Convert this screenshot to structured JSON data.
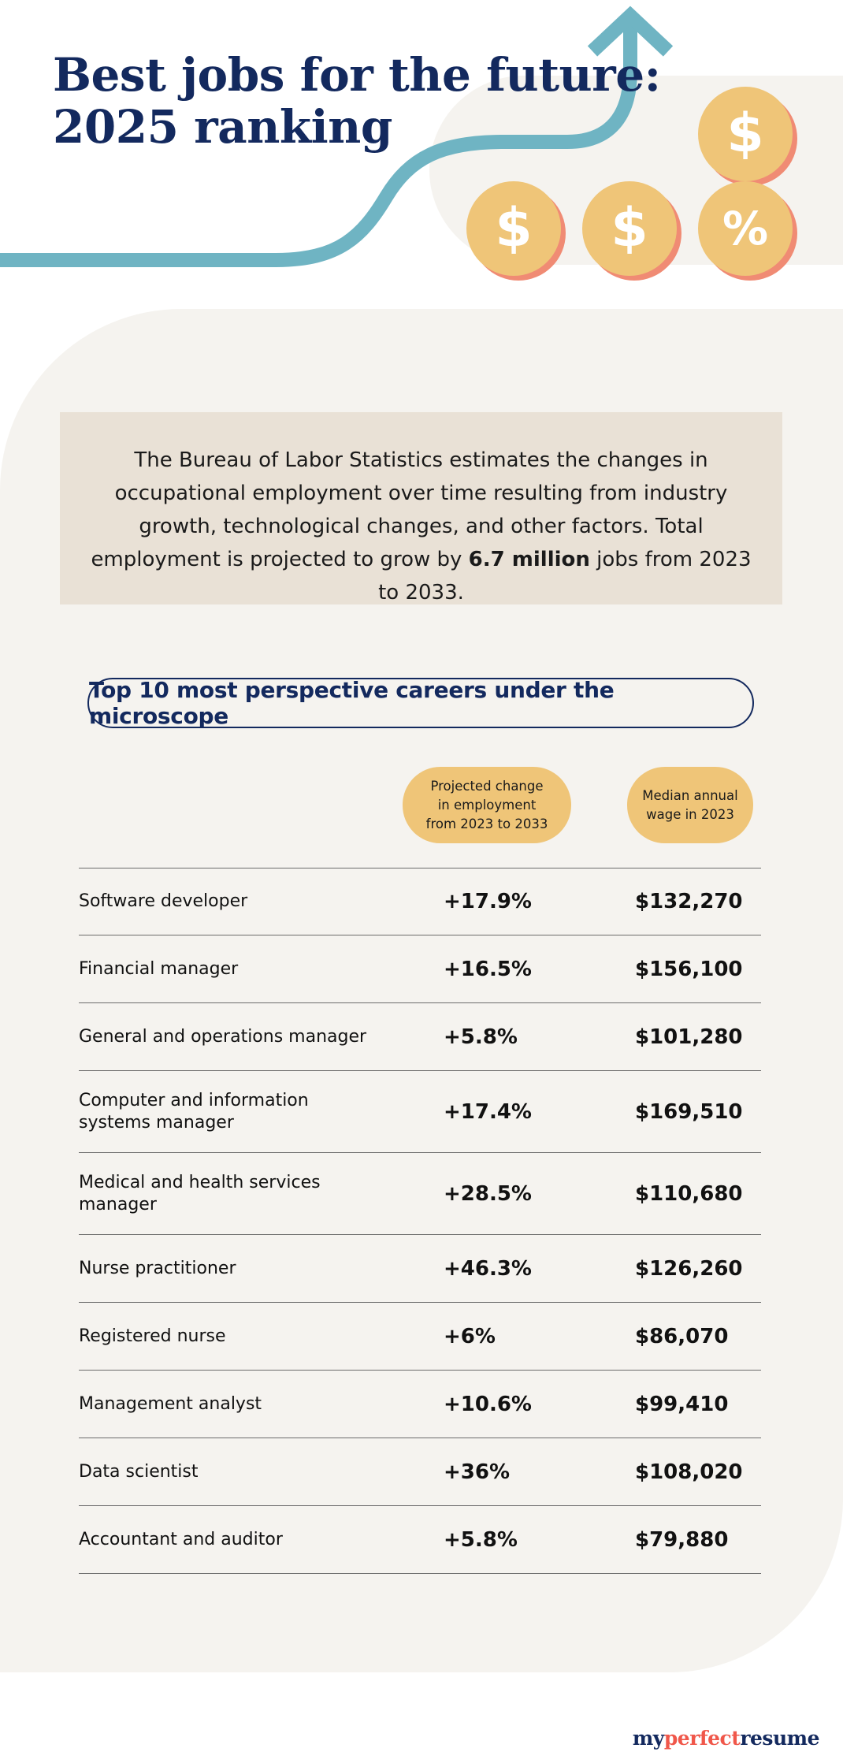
{
  "header": {
    "title_line1": "Best jobs for the future:",
    "title_line2": "2025 ranking"
  },
  "decorations": {
    "arrow_color": "#6fb4c3",
    "coin_color": "#efc578",
    "coin_shadow_color": "#f08b74",
    "coins": [
      {
        "icon": "dollar-icon",
        "glyph": "$"
      },
      {
        "icon": "dollar-icon",
        "glyph": "$"
      },
      {
        "icon": "dollar-icon",
        "glyph": "$"
      },
      {
        "icon": "percent-icon",
        "glyph": "%"
      }
    ]
  },
  "intro": {
    "text_before": "The Bureau of Labor Statistics estimates the changes in occupational employment over time resulting from industry growth, technological changes, and other factors. Total employment is projected to grow by ",
    "highlight": "6.7 million",
    "text_after": " jobs from 2023 to 2033."
  },
  "table_title": "Top 10 most perspective careers under the microscope",
  "columns": {
    "change": "Projected change\nin employment\nfrom 2023 to 2033",
    "wage": "Median annual\nwage in 2023"
  },
  "rows": [
    {
      "job": "Software developer",
      "change": "+17.9%",
      "wage": "$132,270"
    },
    {
      "job": "Financial manager",
      "change": "+16.5%",
      "wage": "$156,100"
    },
    {
      "job": "General and operations manager",
      "change": "+5.8%",
      "wage": "$101,280"
    },
    {
      "job": "Computer and information systems manager",
      "change": "+17.4%",
      "wage": "$169,510"
    },
    {
      "job": "Medical and health services manager",
      "change": "+28.5%",
      "wage": "$110,680"
    },
    {
      "job": "Nurse practitioner",
      "change": "+46.3%",
      "wage": "$126,260"
    },
    {
      "job": "Registered nurse",
      "change": "+6%",
      "wage": "$86,070"
    },
    {
      "job": "Management analyst",
      "change": "+10.6%",
      "wage": "$99,410"
    },
    {
      "job": "Data scientist",
      "change": "+36%",
      "wage": "$108,020"
    },
    {
      "job": "Accountant and auditor",
      "change": "+5.8%",
      "wage": "$79,880"
    }
  ],
  "brand": {
    "part1": "my",
    "part2": "perfect",
    "part3": "resume"
  },
  "colors": {
    "navy": "#13295e",
    "cream": "#f5f3ef",
    "intro_bg": "#e9e1d6",
    "accent_red": "#f0574a"
  }
}
